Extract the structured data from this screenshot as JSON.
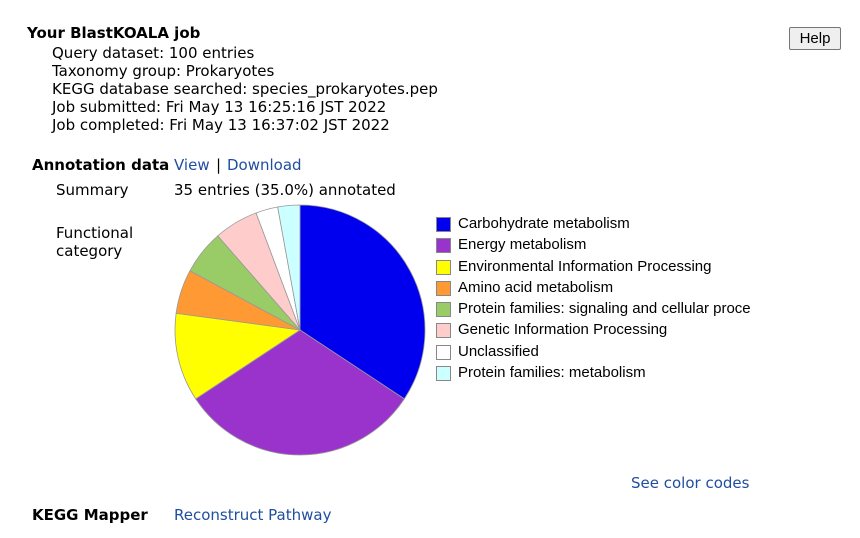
{
  "job": {
    "title": "Your BlastKOALA job",
    "lines": [
      "Query dataset: 100 entries",
      "Taxonomy group: Prokaryotes",
      "KEGG database searched: species_prokaryotes.pep",
      "Job submitted: Fri May 13 16:25:16 JST 2022",
      "Job completed: Fri May 13 16:37:02 JST 2022"
    ]
  },
  "help_label": "Help",
  "annotation": {
    "title": "Annotation data",
    "view_label": "View",
    "separator": "|",
    "download_label": "Download",
    "summary_label": "Summary",
    "summary_value": "35 entries (35.0%) annotated",
    "functional_label_1": "Functional",
    "functional_label_2": "category"
  },
  "legend": [
    {
      "label": "Carbohydrate metabolism",
      "color": "#0000ee"
    },
    {
      "label": "Energy metabolism",
      "color": "#9933cc"
    },
    {
      "label": "Environmental Information Processing",
      "color": "#ffff00"
    },
    {
      "label": "Amino acid metabolism",
      "color": "#ff9933"
    },
    {
      "label": "Protein families: signaling and cellular proce",
      "color": "#99cc66"
    },
    {
      "label": "Genetic Information Processing",
      "color": "#ffcccc"
    },
    {
      "label": "Unclassified",
      "color": "#ffffff"
    },
    {
      "label": "Protein families: metabolism",
      "color": "#ccffff"
    }
  ],
  "chart_data": {
    "type": "pie",
    "categories": [
      "Carbohydrate metabolism",
      "Energy metabolism",
      "Environmental Information Processing",
      "Amino acid metabolism",
      "Protein families: signaling and cellular proce",
      "Genetic Information Processing",
      "Unclassified",
      "Protein families: metabolism"
    ],
    "values": [
      12,
      11,
      4,
      2,
      2,
      2,
      1,
      1
    ],
    "colors": [
      "#0000ee",
      "#9933cc",
      "#ffff00",
      "#ff9933",
      "#99cc66",
      "#ffcccc",
      "#ffffff",
      "#ccffff"
    ],
    "title": "",
    "legend": "right"
  },
  "see_color_codes": "See color codes",
  "mapper": {
    "title": "KEGG Mapper",
    "link_label": "Reconstruct Pathway"
  }
}
